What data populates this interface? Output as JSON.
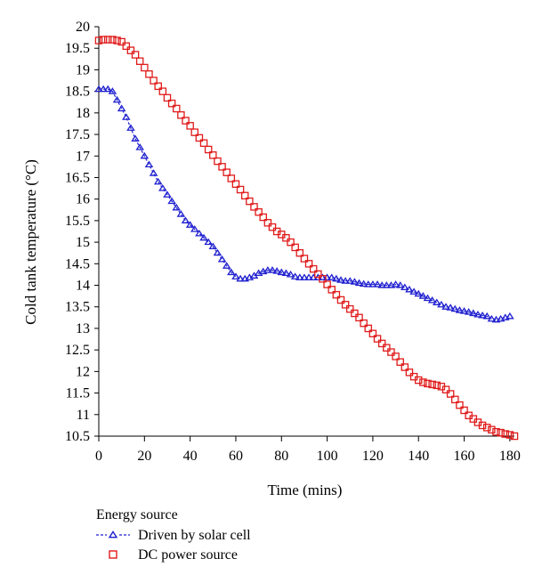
{
  "chart_data": {
    "type": "scatter",
    "xlabel": "Time (mins)",
    "ylabel": "Cold tank temperature (°C)",
    "xlim": [
      0,
      182
    ],
    "ylim": [
      10.5,
      20
    ],
    "x_ticks": [
      0,
      20,
      40,
      60,
      80,
      100,
      120,
      140,
      160,
      180
    ],
    "y_ticks": [
      10.5,
      11,
      11.5,
      12,
      12.5,
      13,
      13.5,
      14,
      14.5,
      15,
      15.5,
      16,
      16.5,
      17,
      17.5,
      18,
      18.5,
      19,
      19.5,
      20
    ],
    "legend": {
      "title": "Energy source",
      "position": "bottom-left"
    },
    "series": [
      {
        "name": "Driven by solar cell",
        "color": "#1f1fd0",
        "marker": "triangle",
        "line": "dashed",
        "x": [
          0,
          2,
          4,
          6,
          8,
          10,
          12,
          14,
          16,
          18,
          20,
          22,
          24,
          26,
          28,
          30,
          32,
          34,
          36,
          38,
          40,
          42,
          44,
          46,
          48,
          50,
          52,
          54,
          56,
          58,
          60,
          62,
          64,
          66,
          68,
          70,
          72,
          74,
          76,
          78,
          80,
          82,
          84,
          86,
          88,
          90,
          92,
          94,
          96,
          98,
          100,
          102,
          104,
          106,
          108,
          110,
          112,
          114,
          116,
          118,
          120,
          122,
          124,
          126,
          128,
          130,
          132,
          134,
          136,
          138,
          140,
          142,
          144,
          146,
          148,
          150,
          152,
          154,
          156,
          158,
          160,
          162,
          164,
          166,
          168,
          170,
          172,
          174,
          176,
          178,
          180
        ],
        "y": [
          18.55,
          18.55,
          18.55,
          18.5,
          18.3,
          18.1,
          17.9,
          17.65,
          17.4,
          17.2,
          17.0,
          16.8,
          16.6,
          16.4,
          16.25,
          16.1,
          15.95,
          15.8,
          15.65,
          15.5,
          15.4,
          15.3,
          15.2,
          15.1,
          15.0,
          14.9,
          14.75,
          14.6,
          14.45,
          14.3,
          14.2,
          14.15,
          14.15,
          14.18,
          14.22,
          14.28,
          14.32,
          14.35,
          14.35,
          14.33,
          14.3,
          14.28,
          14.25,
          14.2,
          14.18,
          14.18,
          14.18,
          14.18,
          14.18,
          14.18,
          14.18,
          14.18,
          14.15,
          14.12,
          14.1,
          14.1,
          14.08,
          14.05,
          14.03,
          14.02,
          14.02,
          14.02,
          14.0,
          14.0,
          14.0,
          14.02,
          14.0,
          13.95,
          13.9,
          13.85,
          13.8,
          13.75,
          13.7,
          13.65,
          13.6,
          13.55,
          13.5,
          13.48,
          13.45,
          13.42,
          13.4,
          13.38,
          13.35,
          13.32,
          13.3,
          13.28,
          13.22,
          13.2,
          13.22,
          13.25,
          13.28
        ]
      },
      {
        "name": "DC power source",
        "color": "#e01b1b",
        "marker": "square",
        "line": "none",
        "x": [
          0,
          2,
          4,
          6,
          8,
          10,
          12,
          14,
          16,
          18,
          20,
          22,
          24,
          26,
          28,
          30,
          32,
          34,
          36,
          38,
          40,
          42,
          44,
          46,
          48,
          50,
          52,
          54,
          56,
          58,
          60,
          62,
          64,
          66,
          68,
          70,
          72,
          74,
          76,
          78,
          80,
          82,
          84,
          86,
          88,
          90,
          92,
          94,
          96,
          98,
          100,
          102,
          104,
          106,
          108,
          110,
          112,
          114,
          116,
          118,
          120,
          122,
          124,
          126,
          128,
          130,
          132,
          134,
          136,
          138,
          140,
          142,
          144,
          146,
          148,
          150,
          152,
          154,
          156,
          158,
          160,
          162,
          164,
          166,
          168,
          170,
          172,
          174,
          176,
          178,
          180,
          182
        ],
        "y": [
          19.68,
          19.7,
          19.7,
          19.7,
          19.68,
          19.65,
          19.55,
          19.45,
          19.35,
          19.2,
          19.05,
          18.9,
          18.75,
          18.62,
          18.5,
          18.35,
          18.22,
          18.1,
          17.95,
          17.82,
          17.7,
          17.55,
          17.42,
          17.3,
          17.15,
          17.02,
          16.88,
          16.75,
          16.62,
          16.48,
          16.35,
          16.22,
          16.08,
          15.95,
          15.82,
          15.7,
          15.58,
          15.45,
          15.35,
          15.25,
          15.18,
          15.1,
          15.0,
          14.88,
          14.75,
          14.62,
          14.5,
          14.38,
          14.26,
          14.15,
          14.02,
          13.9,
          13.78,
          13.66,
          13.55,
          13.45,
          13.35,
          13.25,
          13.12,
          13.0,
          12.88,
          12.76,
          12.65,
          12.55,
          12.45,
          12.35,
          12.22,
          12.1,
          11.98,
          11.88,
          11.8,
          11.75,
          11.72,
          11.7,
          11.68,
          11.65,
          11.58,
          11.48,
          11.35,
          11.22,
          11.1,
          10.98,
          10.9,
          10.82,
          10.75,
          10.7,
          10.65,
          10.6,
          10.58,
          10.55,
          10.53,
          10.5
        ]
      }
    ]
  }
}
